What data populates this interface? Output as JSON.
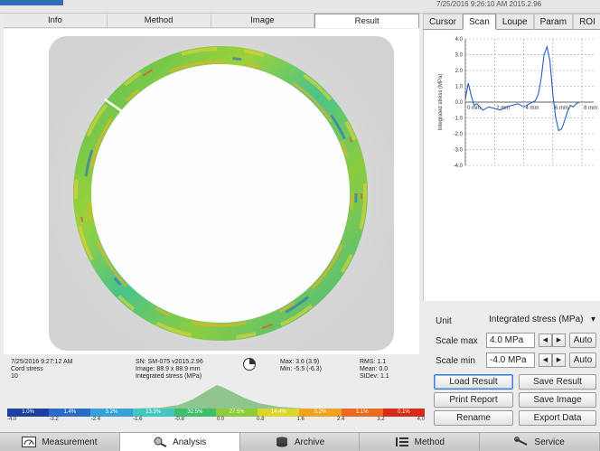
{
  "header": {
    "datetime": "7/25/2016 9:26:10 AM     2015.2.96"
  },
  "left_tabs": [
    {
      "label": "Info"
    },
    {
      "label": "Method"
    },
    {
      "label": "Image"
    },
    {
      "label": "Result",
      "active": true
    }
  ],
  "right_tabs": [
    {
      "label": "Cursor"
    },
    {
      "label": "Scan",
      "active": true
    },
    {
      "label": "Loupe"
    },
    {
      "label": "Param"
    },
    {
      "label": "ROI"
    }
  ],
  "info": {
    "datetime": "7/25/2016 9:27:12 AM",
    "measurement": "Cord stress",
    "count": "10",
    "sn": "SN:   SM-075 v2015.2.96",
    "image_size": "Image: 88.9 x 88.9 mm",
    "quantity": "Integrated stress (MPa)",
    "max": "Max: 3.6 (3.9)",
    "min": "Min: -5.5 (-6.3)",
    "rms": "RMS:  1.1",
    "mean": "Mean:  0.0",
    "stdev": "StDev: 1.1"
  },
  "colorbar": {
    "segments": [
      {
        "label": "1.0%",
        "color": "#1f3f9e"
      },
      {
        "label": "1.4%",
        "color": "#2a6cc4"
      },
      {
        "label": "3.2%",
        "color": "#35a1d8"
      },
      {
        "label": "13.3%",
        "color": "#3fc7c0"
      },
      {
        "label": "32.5%",
        "color": "#3fbf6a"
      },
      {
        "label": "27.5%",
        "color": "#8ccc3a"
      },
      {
        "label": "14.4%",
        "color": "#dcd52b"
      },
      {
        "label": "5.2%",
        "color": "#f0a323"
      },
      {
        "label": "1.1%",
        "color": "#ea6a1f"
      },
      {
        "label": "0.1%",
        "color": "#d62a1a"
      }
    ],
    "ticks": [
      "-4.0",
      "-3.2",
      "-2.4",
      "-1.6",
      "-0.8",
      "0.0",
      "0.8",
      "1.6",
      "2.4",
      "3.2",
      "4.0"
    ]
  },
  "chart_data": {
    "type": "line",
    "ylabel": "Integrated stress (MPa)",
    "ylim": [
      -4.0,
      4.0
    ],
    "xlim": [
      0,
      8.8
    ],
    "yticks": [
      "4.0",
      "3.0",
      "2.0",
      "1.0",
      "0.0",
      "-1.0",
      "-2.0",
      "-3.0",
      "-4.0"
    ],
    "xticks": [
      {
        "label": "0 mm",
        "value": 0
      },
      {
        "label": "2 mm",
        "value": 2
      },
      {
        "label": "4 mm",
        "value": 4
      },
      {
        "label": "6 mm",
        "value": 6
      },
      {
        "label": "8 mm",
        "value": 8
      }
    ],
    "grid": true,
    "series": [
      {
        "color": "#2060c0",
        "x": [
          0.0,
          0.2,
          0.4,
          0.6,
          0.8,
          1.0,
          1.2,
          1.6,
          2.0,
          2.4,
          2.8,
          3.2,
          3.6,
          4.0,
          4.4,
          4.8,
          5.0,
          5.2,
          5.4,
          5.6,
          5.8,
          6.0,
          6.2,
          6.4,
          6.6,
          6.8,
          7.0,
          7.2,
          7.4,
          7.6,
          7.8
        ],
        "y": [
          0.2,
          1.2,
          0.4,
          -0.2,
          -0.1,
          -0.3,
          -0.5,
          -0.3,
          -0.4,
          -0.5,
          -0.3,
          -0.2,
          -0.1,
          -0.3,
          -0.1,
          0.1,
          0.5,
          1.5,
          3.0,
          3.5,
          2.6,
          0.5,
          -1.0,
          -1.8,
          -1.7,
          -1.2,
          -0.6,
          -0.2,
          -0.3,
          -0.1,
          0.0
        ]
      }
    ]
  },
  "controls": {
    "unit_label": "Unit",
    "unit_value": "Integrated stress (MPa)",
    "scale_max_label": "Scale max",
    "scale_max_value": "4.0 MPa",
    "scale_min_label": "Scale min",
    "scale_min_value": "-4.0 MPa",
    "auto_label": "Auto",
    "dec_arrow": "◀",
    "inc_arrow": "▶",
    "dropdown_arrow": "▾"
  },
  "actions": {
    "load_result": "Load Result",
    "save_result": "Save Result",
    "print_report": "Print Report",
    "save_image": "Save Image",
    "rename": "Rename",
    "export_data": "Export Data"
  },
  "nav": [
    {
      "label": "Measurement",
      "icon": "gauge-icon"
    },
    {
      "label": "Analysis",
      "icon": "magnifier-icon",
      "active": true
    },
    {
      "label": "Archive",
      "icon": "database-icon"
    },
    {
      "label": "Method",
      "icon": "method-icon"
    },
    {
      "label": "Service",
      "icon": "wrench-icon"
    }
  ]
}
